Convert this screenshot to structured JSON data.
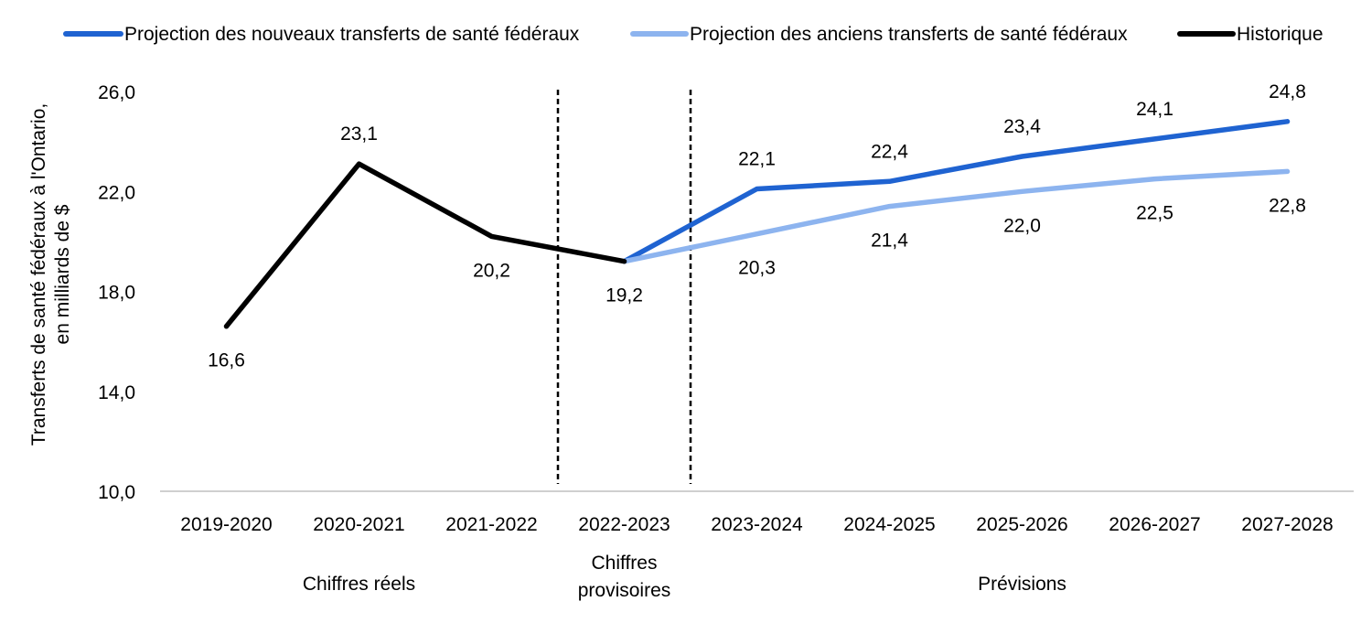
{
  "chart_data": {
    "type": "line",
    "title": "",
    "xlabel": "",
    "ylabel_lines": [
      "Transferts de santé fédéraux à l'Ontario,",
      "en milliards de $"
    ],
    "ylim": [
      10,
      26
    ],
    "yticks": [
      10,
      14,
      18,
      22,
      26
    ],
    "ytick_labels": [
      "10,0",
      "14,0",
      "18,0",
      "22,0",
      "26,0"
    ],
    "categories": [
      "2019-2020",
      "2020-2021",
      "2021-2022",
      "2022-2023",
      "2023-2024",
      "2024-2025",
      "2025-2026",
      "2026-2027",
      "2027-2028"
    ],
    "grid": false,
    "legend_position": "top",
    "series": [
      {
        "name": "Projection des nouveaux transferts de santé fédéraux",
        "color": "#1f63d1",
        "values": [
          null,
          null,
          null,
          19.2,
          22.1,
          22.4,
          23.4,
          24.1,
          24.8
        ],
        "labels": [
          null,
          null,
          null,
          null,
          "22,1",
          "22,4",
          "23,4",
          "24,1",
          "24,8"
        ],
        "label_position": "above"
      },
      {
        "name": "Projection des anciens transferts de santé fédéraux",
        "color": "#8db4ef",
        "values": [
          null,
          null,
          null,
          19.2,
          20.3,
          21.4,
          22.0,
          22.5,
          22.8
        ],
        "labels": [
          null,
          null,
          null,
          null,
          "20,3",
          "21,4",
          "22,0",
          "22,5",
          "22,8"
        ],
        "label_position": "below"
      },
      {
        "name": "Historique",
        "color": "#000000",
        "values": [
          16.6,
          23.1,
          20.2,
          19.2,
          null,
          null,
          null,
          null,
          null
        ],
        "labels": [
          "16,6",
          "23,1",
          "20,2",
          "19,2",
          null,
          null,
          null,
          null,
          null
        ],
        "label_position": [
          "below",
          "above",
          "below",
          "below"
        ]
      }
    ],
    "period_dividers_after_categories": [
      "2021-2022",
      "2022-2023"
    ],
    "period_labels": [
      {
        "text": [
          "Chiffres réels"
        ],
        "from": "2019-2020",
        "to": "2021-2022"
      },
      {
        "text": [
          "Chiffres",
          "provisoires"
        ],
        "from": "2022-2023",
        "to": "2022-2023"
      },
      {
        "text": [
          "Prévisions"
        ],
        "from": "2023-2024",
        "to": "2027-2028"
      }
    ]
  }
}
